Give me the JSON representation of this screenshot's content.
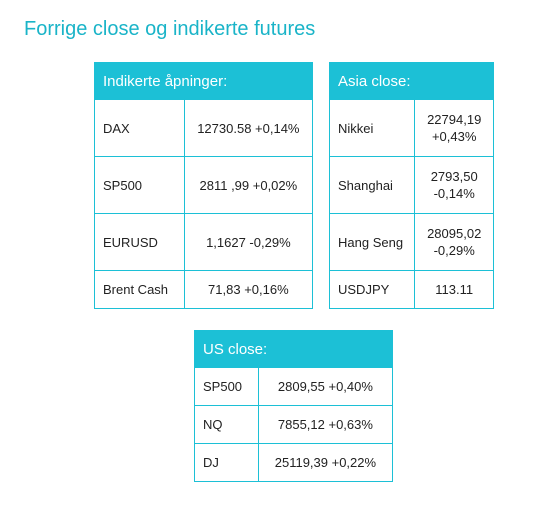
{
  "page": {
    "title": "Forrige close og indikerte futures"
  },
  "indicated_openings": {
    "header": "Indikerte åpninger:",
    "rows": [
      {
        "name": "DAX",
        "value": "12730.58 +0,14%"
      },
      {
        "name": "SP500",
        "value": "2811 ,99 +0,02%"
      },
      {
        "name": "EURUSD",
        "value": "1,1627 -0,29%"
      },
      {
        "name": "Brent Cash",
        "value": "71,83 +0,16%"
      }
    ]
  },
  "asia_close": {
    "header": "Asia close:",
    "rows": [
      {
        "name": "Nikkei",
        "value_line1": "22794,19",
        "value_line2": "+0,43%"
      },
      {
        "name": "Shanghai",
        "value_line1": "2793,50",
        "value_line2": "-0,14%"
      },
      {
        "name": "Hang Seng",
        "value_line1": "28095,02",
        "value_line2": "-0,29%"
      },
      {
        "name": "USDJPY",
        "value_line1": "113.11",
        "value_line2": ""
      }
    ]
  },
  "us_close": {
    "header": "US close:",
    "rows": [
      {
        "name": "SP500",
        "value": "2809,55 +0,40%"
      },
      {
        "name": "NQ",
        "value": "7855,12 +0,63%"
      },
      {
        "name": "DJ",
        "value": "25119,39 +0,22%"
      }
    ]
  },
  "colors": {
    "accent": "#1cc0d6",
    "title": "#1ab4c8",
    "text": "#222222"
  }
}
